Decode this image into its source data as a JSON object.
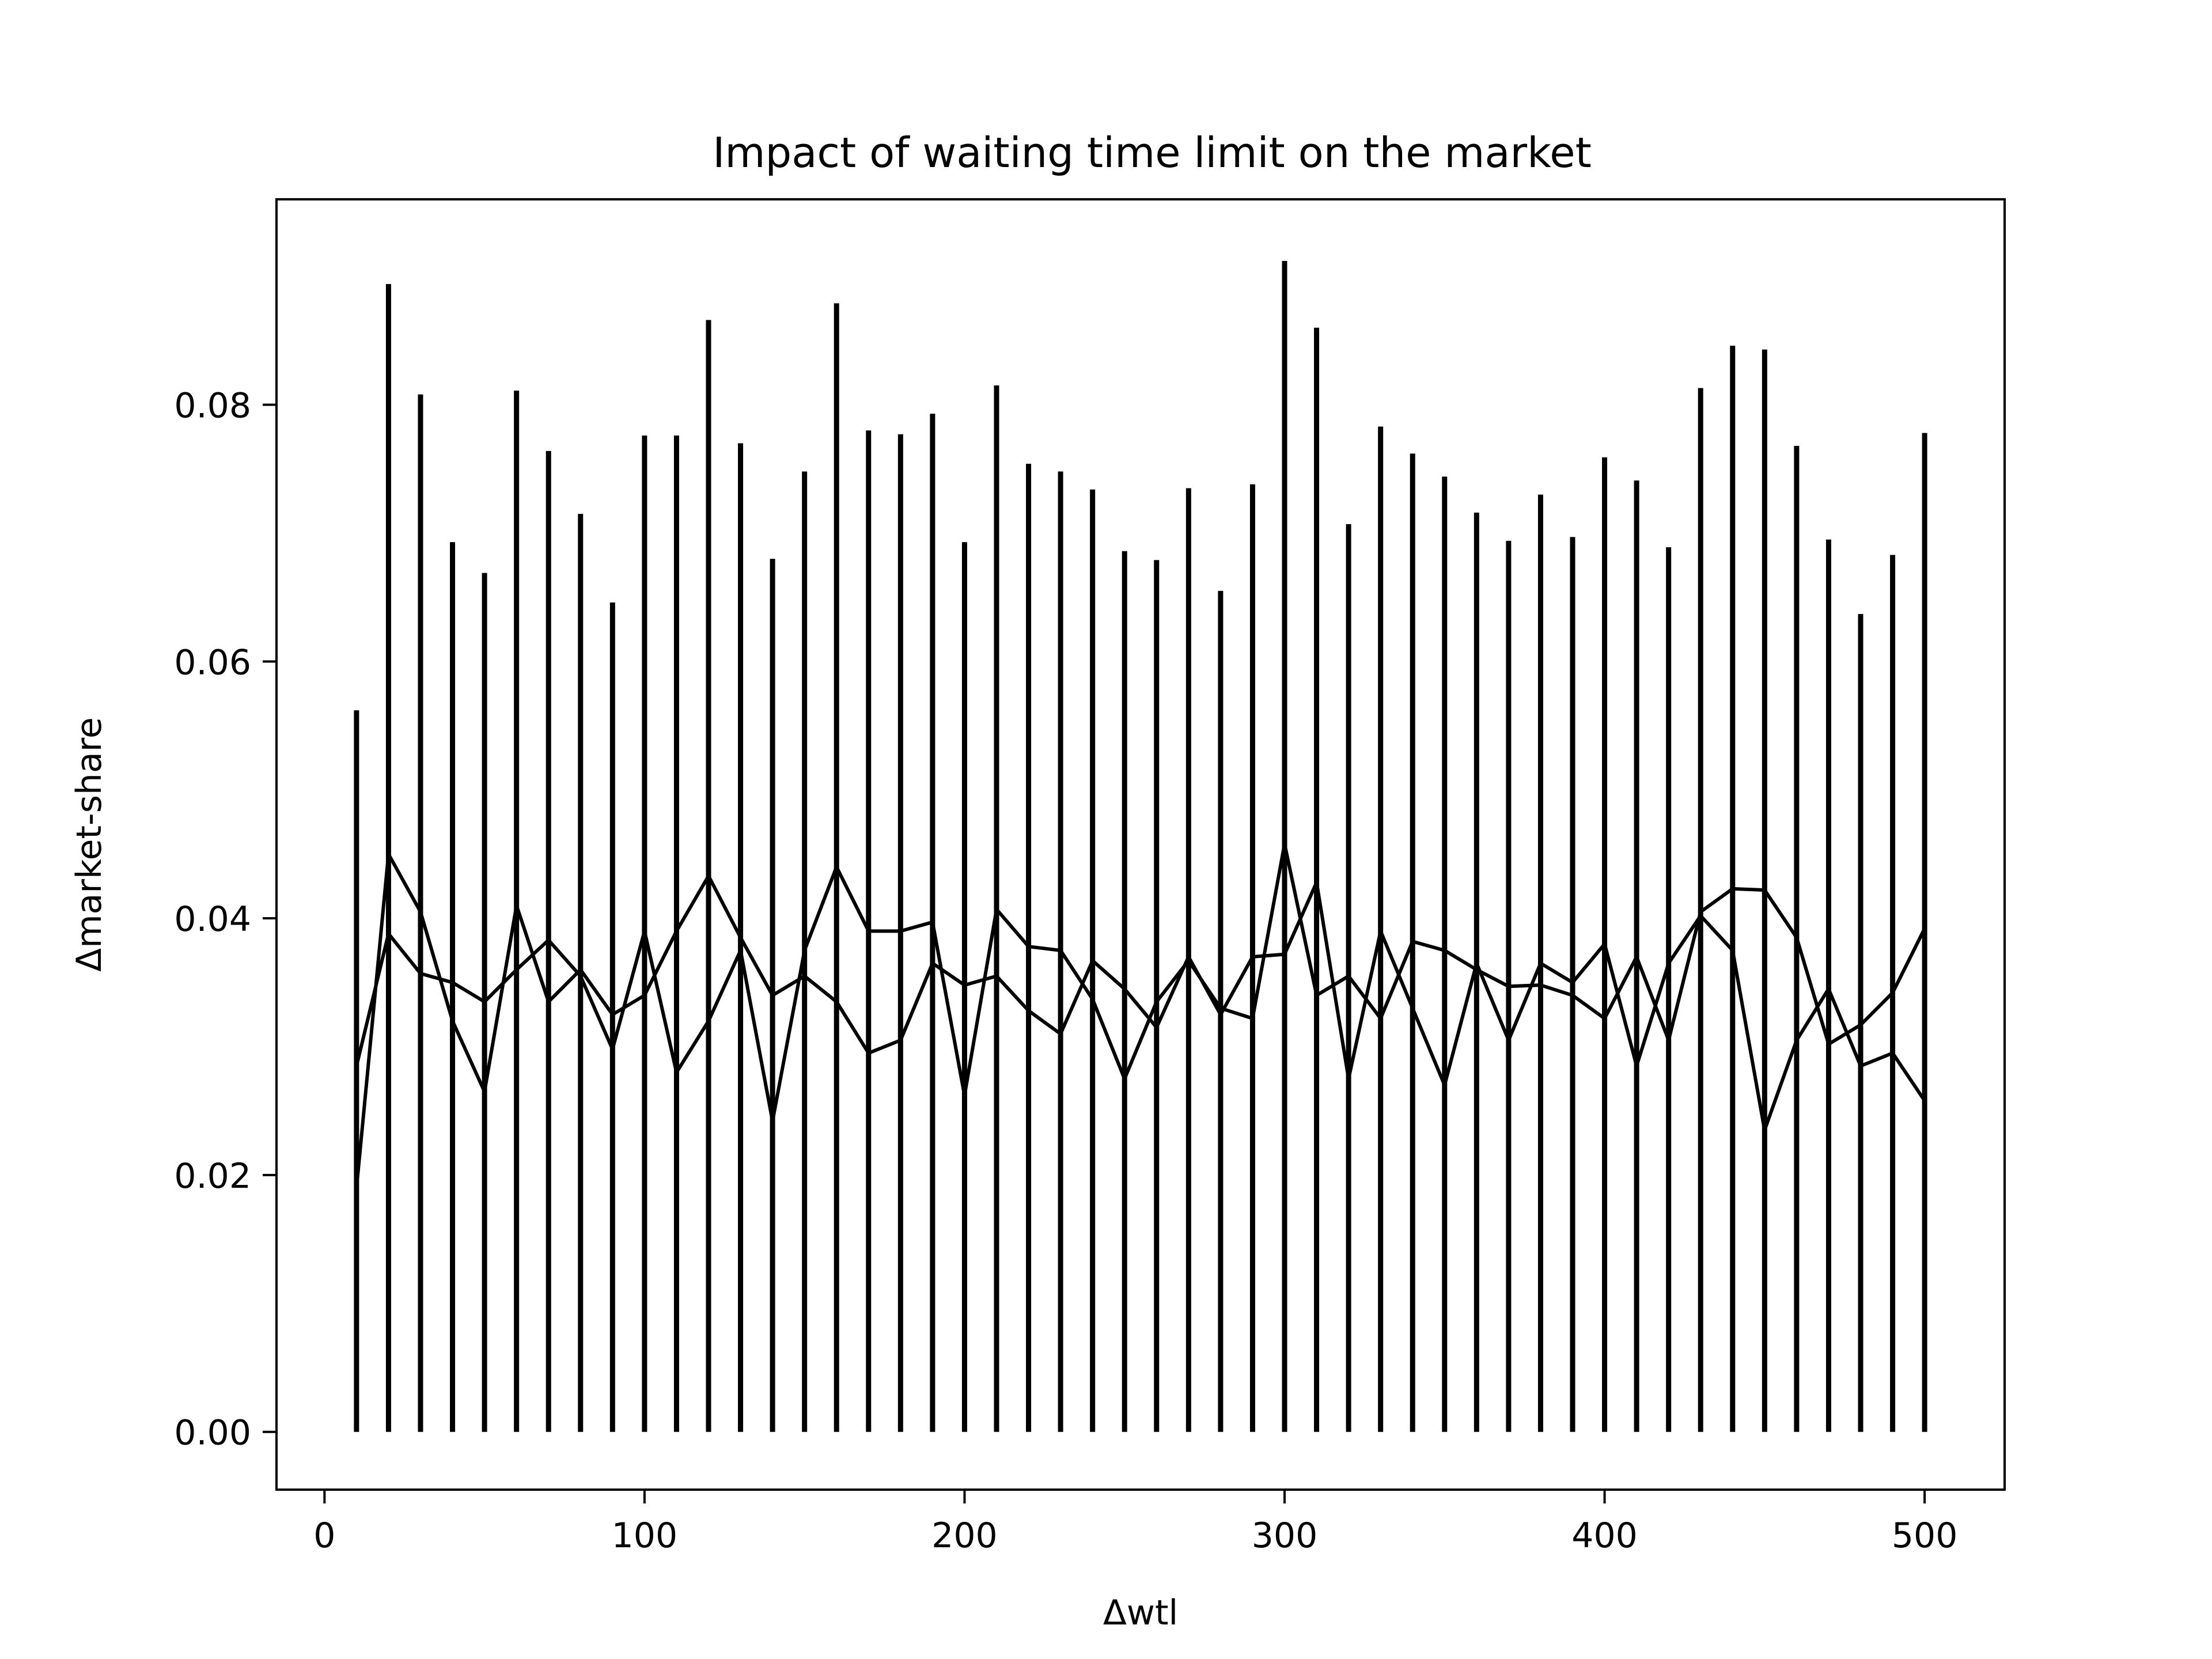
{
  "chart_data": {
    "type": "line",
    "title": "Impact of waiting time limit on the market",
    "xlabel": "Δwtl",
    "ylabel": "Δmarket-share",
    "xlim": [
      -15,
      525
    ],
    "ylim": [
      -0.0045,
      0.096
    ],
    "xticks": [
      0,
      100,
      200,
      300,
      400,
      500
    ],
    "xtick_labels": [
      "0",
      "100",
      "200",
      "300",
      "400",
      "500"
    ],
    "yticks": [
      0.0,
      0.02,
      0.04,
      0.06,
      0.08
    ],
    "ytick_labels": [
      "0.00",
      "0.02",
      "0.04",
      "0.06",
      "0.08"
    ],
    "grid": false,
    "legend": "none",
    "x": [
      10,
      20,
      30,
      40,
      50,
      60,
      70,
      80,
      90,
      100,
      110,
      120,
      130,
      140,
      150,
      160,
      170,
      180,
      190,
      200,
      210,
      220,
      230,
      240,
      250,
      260,
      270,
      280,
      290,
      300,
      310,
      320,
      330,
      340,
      350,
      360,
      370,
      380,
      390,
      400,
      410,
      420,
      430,
      440,
      450,
      460,
      470,
      480,
      490,
      500
    ],
    "series": [
      {
        "values": [
          0.019,
          0.045,
          0.0405,
          0.032,
          0.0265,
          0.041,
          0.0335,
          0.036,
          0.0325,
          0.034,
          0.039,
          0.0433,
          0.0385,
          0.034,
          0.0355,
          0.0335,
          0.0295,
          0.0305,
          0.0365,
          0.0348,
          0.0355,
          0.0328,
          0.031,
          0.0367,
          0.0345,
          0.0315,
          0.037,
          0.0325,
          0.037,
          0.0372,
          0.0428,
          0.0275,
          0.039,
          0.033,
          0.027,
          0.0365,
          0.0305,
          0.0365,
          0.035,
          0.038,
          0.0285,
          0.0365,
          0.0402,
          0.0375,
          0.0235,
          0.0305,
          0.0345,
          0.0285,
          0.0295,
          0.0258
        ]
      },
      {
        "values": [
          0.0285,
          0.0388,
          0.0357,
          0.035,
          0.0335,
          0.036,
          0.0383,
          0.0355,
          0.0298,
          0.039,
          0.028,
          0.032,
          0.0375,
          0.0242,
          0.0375,
          0.044,
          0.039,
          0.039,
          0.0397,
          0.0262,
          0.0407,
          0.0378,
          0.0375,
          0.0337,
          0.0275,
          0.0335,
          0.0367,
          0.033,
          0.0322,
          0.0458,
          0.034,
          0.0355,
          0.0322,
          0.0382,
          0.0375,
          0.036,
          0.0347,
          0.0348,
          0.034,
          0.0322,
          0.037,
          0.0305,
          0.0405,
          0.0423,
          0.0422,
          0.0385,
          0.0302,
          0.0317,
          0.0342,
          0.0392
        ]
      }
    ],
    "error_bars": {
      "lower": 0.0,
      "upper": [
        0.0562,
        0.0894,
        0.0808,
        0.0693,
        0.0669,
        0.0811,
        0.0764,
        0.0715,
        0.0646,
        0.0776,
        0.0776,
        0.0866,
        0.077,
        0.068,
        0.0748,
        0.0879,
        0.078,
        0.0777,
        0.0793,
        0.0693,
        0.0815,
        0.0754,
        0.0748,
        0.0734,
        0.0686,
        0.0679,
        0.0735,
        0.0655,
        0.0738,
        0.0912,
        0.086,
        0.0707,
        0.0783,
        0.0762,
        0.0744,
        0.0716,
        0.0694,
        0.073,
        0.0697,
        0.0759,
        0.0741,
        0.0689,
        0.0813,
        0.0846,
        0.0843,
        0.0768,
        0.0695,
        0.0637,
        0.0683,
        0.0778
      ]
    },
    "color": "#000000"
  }
}
